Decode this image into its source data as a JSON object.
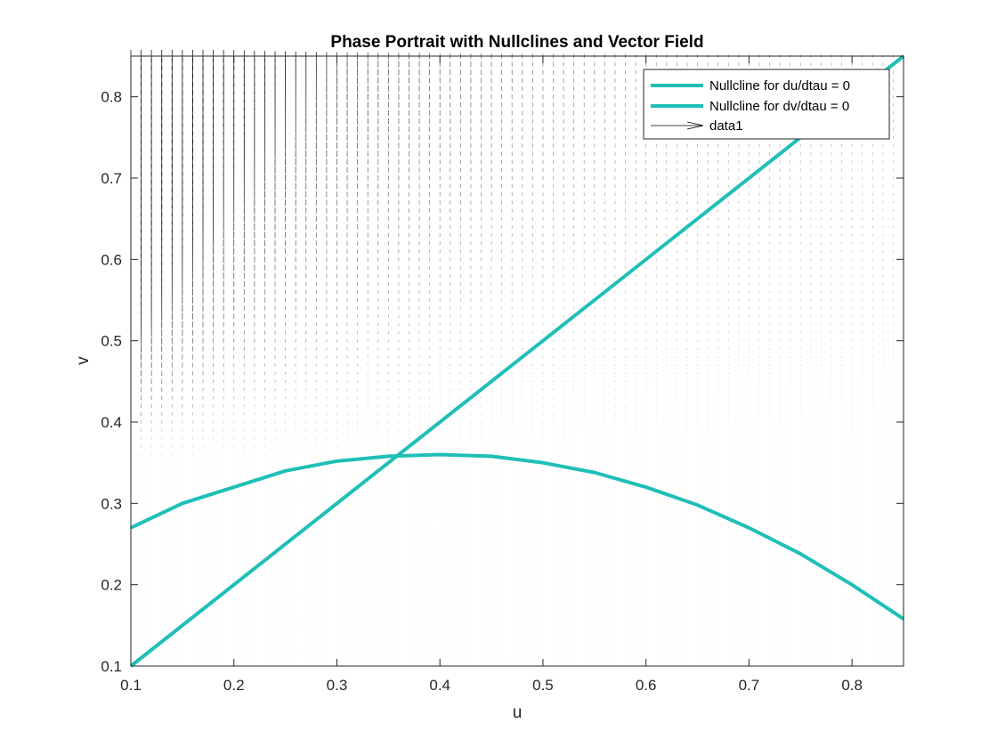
{
  "chart_data": {
    "type": "line",
    "title": "Phase Portrait with Nullclines and Vector Field",
    "xlabel": "u",
    "ylabel": "v",
    "xlim": [
      0.1,
      0.85
    ],
    "ylim": [
      0.1,
      0.85
    ],
    "xticks": [
      "0.1",
      "0.2",
      "0.3",
      "0.4",
      "0.5",
      "0.6",
      "0.7",
      "0.8"
    ],
    "yticks": [
      "0.1",
      "0.2",
      "0.3",
      "0.4",
      "0.5",
      "0.6",
      "0.7",
      "0.8"
    ],
    "grid": false,
    "legend_position": "top-right",
    "series": [
      {
        "name": "Nullcline for du/dtau = 0",
        "color": "#1fbfb8",
        "x": [
          0.1,
          0.85
        ],
        "y": [
          0.1,
          0.85
        ]
      },
      {
        "name": "Nullcline for dv/dtau = 0",
        "color": "#1fbfb8",
        "x": [
          0.1,
          0.15,
          0.2,
          0.25,
          0.3,
          0.35,
          0.4,
          0.45,
          0.5,
          0.55,
          0.6,
          0.65,
          0.7,
          0.75,
          0.8,
          0.85
        ],
        "y": [
          0.27,
          0.3,
          0.32,
          0.34,
          0.352,
          0.358,
          0.36,
          0.358,
          0.35,
          0.338,
          0.32,
          0.298,
          0.27,
          0.238,
          0.2,
          0.158
        ]
      },
      {
        "name": "data1",
        "type": "quiver",
        "color": "#000000"
      }
    ]
  }
}
